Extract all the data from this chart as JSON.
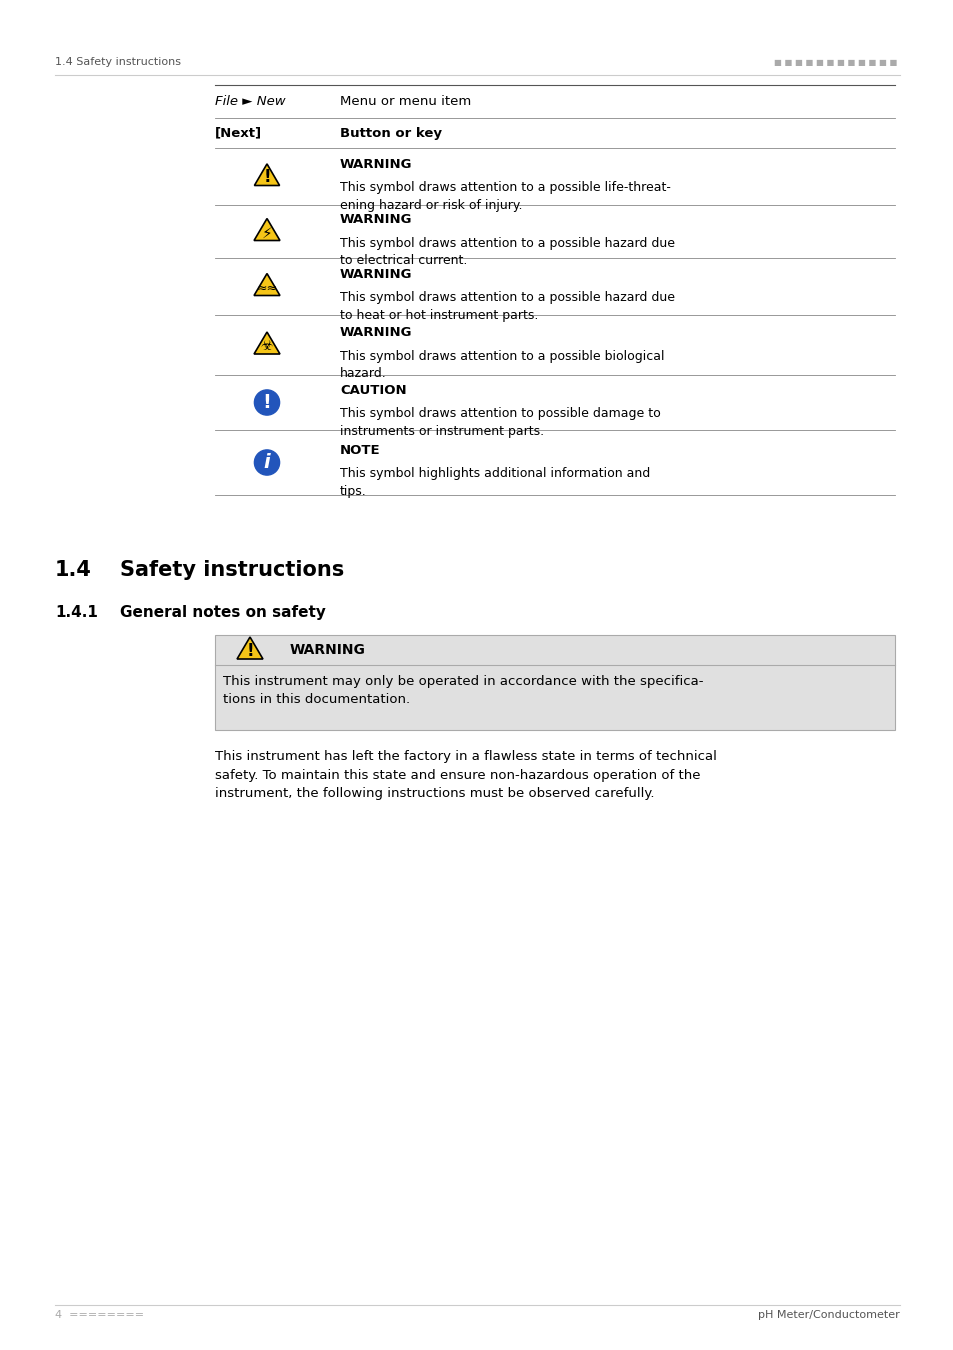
{
  "page_header_left": "1.4 Safety instructions",
  "page_header_right": "========================",
  "page_footer_left": "4  ========",
  "page_footer_right": "pH Meter/Conductometer",
  "section_title": "1.4    Safety instructions",
  "subsection_title": "1.4.1    General notes on safety",
  "table_rows": [
    {
      "left": "File ► New",
      "left_bold": false,
      "right_title": "",
      "right_title_bold": false,
      "right_body": "Menu or menu item",
      "icon": "none"
    },
    {
      "left": "[Next]",
      "left_bold": true,
      "right_title": "",
      "right_title_bold": false,
      "right_body": "Button or key",
      "right_body_bold": true,
      "icon": "none"
    },
    {
      "left": "",
      "icon": "warning_triangle",
      "right_title": "WARNING",
      "right_body": "This symbol draws attention to a possible life-threat-\nening hazard or risk of injury."
    },
    {
      "left": "",
      "icon": "warning_electric",
      "right_title": "WARNING",
      "right_body": "This symbol draws attention to a possible hazard due\nto electrical current."
    },
    {
      "left": "",
      "icon": "warning_heat",
      "right_title": "WARNING",
      "right_body": "This symbol draws attention to a possible hazard due\nto heat or hot instrument parts."
    },
    {
      "left": "",
      "icon": "warning_bio",
      "right_title": "WARNING",
      "right_body": "This symbol draws attention to a possible biological\nhazard."
    },
    {
      "left": "",
      "icon": "caution_blue",
      "right_title": "CAUTION",
      "right_body": "This symbol draws attention to possible damage to\ninstruments or instrument parts."
    },
    {
      "left": "",
      "icon": "info_blue",
      "right_title": "NOTE",
      "right_body": "This symbol highlights additional information and\ntips."
    }
  ],
  "warning_box_title": "WARNING",
  "warning_box_body": "This instrument may only be operated in accordance with the specifica-\ntions in this documentation.",
  "body_text": "This instrument has left the factory in a flawless state in terms of technical\nsafety. To maintain this state and ensure non-hazardous operation of the\ninstrument, the following instructions must be observed carefully.",
  "bg_color": "#ffffff",
  "text_color": "#000000",
  "header_color": "#aaaaaa",
  "table_line_color": "#cccccc",
  "warning_bg": "#e8e8e8"
}
